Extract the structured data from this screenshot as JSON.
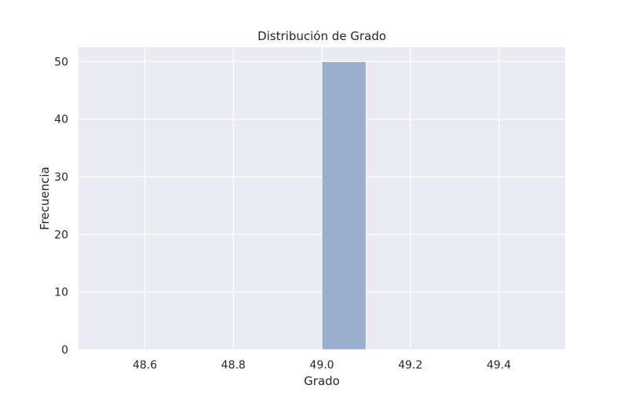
{
  "chart_data": {
    "type": "bar",
    "title": "Distribución de Grado",
    "xlabel": "Grado",
    "ylabel": "Frecuencia",
    "xlim": [
      48.45,
      49.55
    ],
    "ylim": [
      0,
      52.5
    ],
    "xticks": [
      48.6,
      48.8,
      49.0,
      49.2,
      49.4
    ],
    "xtick_labels": [
      "48.6",
      "48.8",
      "49.0",
      "49.2",
      "49.4"
    ],
    "yticks": [
      0,
      10,
      20,
      30,
      40,
      50
    ],
    "ytick_labels": [
      "0",
      "10",
      "20",
      "30",
      "40",
      "50"
    ],
    "bins": [
      {
        "x0": 49.0,
        "x1": 49.1,
        "count": 50
      }
    ],
    "grid": true,
    "colors": {
      "background": "#eaeaf2",
      "grid": "#ffffff",
      "bar": "#9aaed0",
      "bar_edge": "#ffffff"
    }
  }
}
